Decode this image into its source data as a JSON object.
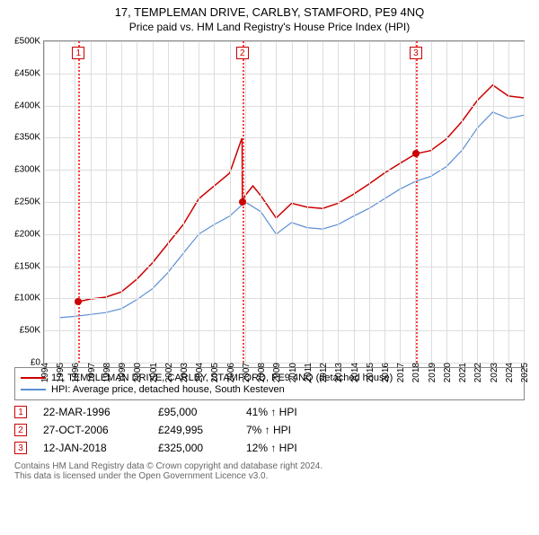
{
  "title": "17, TEMPLEMAN DRIVE, CARLBY, STAMFORD, PE9 4NQ",
  "subtitle": "Price paid vs. HM Land Registry's House Price Index (HPI)",
  "chart": {
    "type": "line",
    "background_color": "#ffffff",
    "grid_color": "#dddddd",
    "border_color": "#888888",
    "marker_vline_color": "#ff4040",
    "marker_box_border": "#cc0000",
    "marker_box_text": "#cc0000",
    "x_min": 1994,
    "x_max": 2025,
    "y_min": 0,
    "y_max": 500000,
    "y_ticks": [
      0,
      50000,
      100000,
      150000,
      200000,
      250000,
      300000,
      350000,
      400000,
      450000,
      500000
    ],
    "y_tick_labels": [
      "£0",
      "£50K",
      "£100K",
      "£150K",
      "£200K",
      "£250K",
      "£300K",
      "£350K",
      "£400K",
      "£450K",
      "£500K"
    ],
    "x_ticks": [
      1994,
      1995,
      1996,
      1997,
      1998,
      1999,
      2000,
      2001,
      2002,
      2003,
      2004,
      2005,
      2006,
      2007,
      2008,
      2009,
      2010,
      2011,
      2012,
      2013,
      2014,
      2015,
      2016,
      2017,
      2018,
      2019,
      2020,
      2021,
      2022,
      2023,
      2024,
      2025
    ],
    "label_fontsize": 10,
    "series": [
      {
        "name": "property",
        "label": "17, TEMPLEMAN DRIVE, CARLBY, STAMFORD, PE9 4NQ (detached house)",
        "color": "#cc0000",
        "line_width": 1.5,
        "data": [
          [
            1996.22,
            95000
          ],
          [
            1997,
            99000
          ],
          [
            1998,
            102000
          ],
          [
            1999,
            110000
          ],
          [
            2000,
            130000
          ],
          [
            2001,
            155000
          ],
          [
            2002,
            185000
          ],
          [
            2003,
            215000
          ],
          [
            2004,
            255000
          ],
          [
            2005,
            275000
          ],
          [
            2006,
            295000
          ],
          [
            2006.8,
            350000
          ],
          [
            2006.82,
            249995
          ],
          [
            2007,
            260000
          ],
          [
            2007.5,
            275000
          ],
          [
            2008,
            260000
          ],
          [
            2009,
            225000
          ],
          [
            2010,
            248000
          ],
          [
            2011,
            242000
          ],
          [
            2012,
            240000
          ],
          [
            2013,
            248000
          ],
          [
            2014,
            262000
          ],
          [
            2015,
            278000
          ],
          [
            2016,
            295000
          ],
          [
            2017,
            310000
          ],
          [
            2018.03,
            325000
          ],
          [
            2019,
            330000
          ],
          [
            2020,
            348000
          ],
          [
            2021,
            375000
          ],
          [
            2022,
            408000
          ],
          [
            2023,
            432000
          ],
          [
            2024,
            415000
          ],
          [
            2025,
            412000
          ]
        ]
      },
      {
        "name": "hpi",
        "label": "HPI: Average price, detached house, South Kesteven",
        "color": "#5b8fd6",
        "line_width": 1.2,
        "data": [
          [
            1995,
            70000
          ],
          [
            1996,
            72000
          ],
          [
            1997,
            75000
          ],
          [
            1998,
            78000
          ],
          [
            1999,
            84000
          ],
          [
            2000,
            98000
          ],
          [
            2001,
            115000
          ],
          [
            2002,
            140000
          ],
          [
            2003,
            170000
          ],
          [
            2004,
            200000
          ],
          [
            2005,
            215000
          ],
          [
            2006,
            228000
          ],
          [
            2007,
            250000
          ],
          [
            2008,
            235000
          ],
          [
            2009,
            200000
          ],
          [
            2010,
            218000
          ],
          [
            2011,
            210000
          ],
          [
            2012,
            208000
          ],
          [
            2013,
            215000
          ],
          [
            2014,
            228000
          ],
          [
            2015,
            240000
          ],
          [
            2016,
            255000
          ],
          [
            2017,
            270000
          ],
          [
            2018,
            282000
          ],
          [
            2019,
            290000
          ],
          [
            2020,
            305000
          ],
          [
            2021,
            330000
          ],
          [
            2022,
            365000
          ],
          [
            2023,
            390000
          ],
          [
            2024,
            380000
          ],
          [
            2025,
            385000
          ]
        ]
      }
    ],
    "markers": [
      {
        "num": "1",
        "x": 1996.22,
        "y": 95000
      },
      {
        "num": "2",
        "x": 2006.82,
        "y": 249995
      },
      {
        "num": "3",
        "x": 2018.03,
        "y": 325000
      }
    ]
  },
  "legend": [
    {
      "color": "#cc0000",
      "label": "17, TEMPLEMAN DRIVE, CARLBY, STAMFORD, PE9 4NQ (detached house)"
    },
    {
      "color": "#5b8fd6",
      "label": "HPI: Average price, detached house, South Kesteven"
    }
  ],
  "events": [
    {
      "num": "1",
      "date": "22-MAR-1996",
      "price": "£95,000",
      "pct": "41% ↑ HPI"
    },
    {
      "num": "2",
      "date": "27-OCT-2006",
      "price": "£249,995",
      "pct": "7% ↑ HPI"
    },
    {
      "num": "3",
      "date": "12-JAN-2018",
      "price": "£325,000",
      "pct": "12% ↑ HPI"
    }
  ],
  "footer": {
    "line1": "Contains HM Land Registry data © Crown copyright and database right 2024.",
    "line2": "This data is licensed under the Open Government Licence v3.0."
  },
  "colors": {
    "event_box_border": "#cc0000",
    "event_box_text": "#cc0000",
    "footer_text": "#666666"
  }
}
